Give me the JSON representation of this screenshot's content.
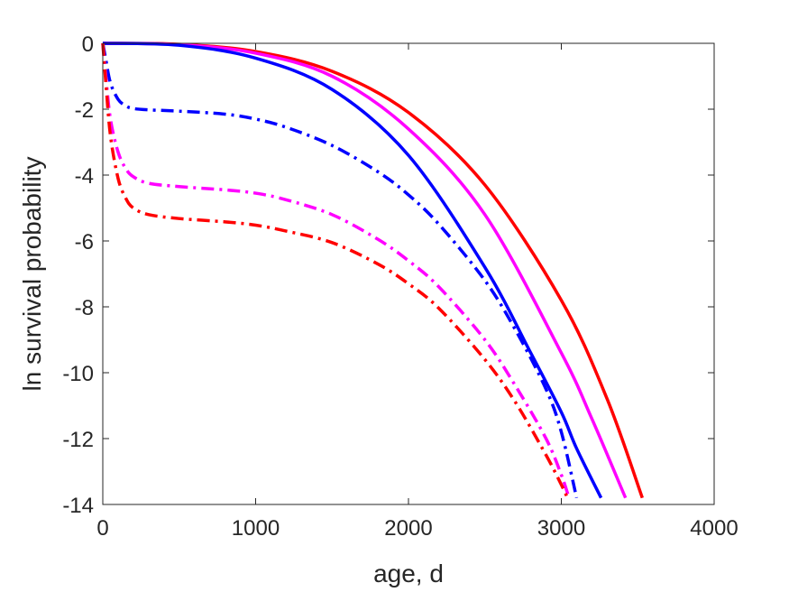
{
  "chart_data": {
    "type": "line",
    "title": "",
    "xlabel": "age, d",
    "ylabel": "ln survival probability",
    "xlim": [
      0,
      4000
    ],
    "ylim": [
      -14,
      0
    ],
    "xticks": [
      0,
      1000,
      2000,
      3000,
      4000
    ],
    "yticks": [
      0,
      -2,
      -4,
      -6,
      -8,
      -10,
      -12,
      -14
    ],
    "xtick_labels": [
      "0",
      "1000",
      "2000",
      "3000",
      "4000"
    ],
    "ytick_labels": [
      "0",
      "-2",
      "-4",
      "-6",
      "-8",
      "-10",
      "-12",
      "-14"
    ],
    "grid": false,
    "series": [
      {
        "color": "#ff0000",
        "style": "solid",
        "x": [
          0,
          500,
          1000,
          1500,
          2000,
          2500,
          3000,
          3300,
          3530
        ],
        "y": [
          0,
          -0.03,
          -0.25,
          -0.85,
          -2.1,
          -4.3,
          -7.8,
          -10.8,
          -13.8
        ]
      },
      {
        "color": "#ff00ff",
        "style": "solid",
        "x": [
          0,
          500,
          1000,
          1500,
          2000,
          2500,
          3000,
          3200,
          3420
        ],
        "y": [
          0,
          -0.04,
          -0.3,
          -1.0,
          -2.6,
          -5.2,
          -9.4,
          -11.4,
          -13.8
        ]
      },
      {
        "color": "#0000ff",
        "style": "solid",
        "x": [
          0,
          500,
          1000,
          1500,
          2000,
          2500,
          2800,
          3000,
          3100,
          3260
        ],
        "y": [
          0,
          -0.06,
          -0.45,
          -1.4,
          -3.4,
          -6.8,
          -9.4,
          -11.2,
          -12.3,
          -13.8
        ]
      },
      {
        "color": "#0000ff",
        "style": "dashdot",
        "x": [
          0,
          20,
          50,
          100,
          150,
          200,
          300,
          500,
          800,
          1000,
          1200,
          1500,
          1800,
          2000,
          2200,
          2500,
          2700,
          2900,
          3000,
          3100
        ],
        "y": [
          0,
          -0.5,
          -1.2,
          -1.7,
          -1.9,
          -1.98,
          -2.02,
          -2.06,
          -2.15,
          -2.3,
          -2.55,
          -3.1,
          -3.9,
          -4.6,
          -5.5,
          -7.2,
          -8.7,
          -10.5,
          -11.8,
          -13.8
        ]
      },
      {
        "color": "#ff00ff",
        "style": "dashdot",
        "x": [
          0,
          20,
          50,
          100,
          150,
          200,
          300,
          500,
          800,
          1000,
          1200,
          1500,
          1800,
          2000,
          2200,
          2500,
          2700,
          2900,
          3000,
          3050
        ],
        "y": [
          0,
          -1.0,
          -2.3,
          -3.3,
          -3.8,
          -4.05,
          -4.25,
          -4.35,
          -4.45,
          -4.55,
          -4.75,
          -5.2,
          -5.95,
          -6.6,
          -7.4,
          -9.0,
          -10.4,
          -12.0,
          -13.1,
          -13.8
        ]
      },
      {
        "color": "#ff0000",
        "style": "dashdot",
        "x": [
          0,
          20,
          50,
          100,
          150,
          200,
          300,
          500,
          800,
          1000,
          1200,
          1500,
          1800,
          2000,
          2200,
          2500,
          2700,
          2900,
          3000,
          3040
        ],
        "y": [
          0,
          -1.2,
          -2.8,
          -4.1,
          -4.7,
          -5.0,
          -5.2,
          -5.32,
          -5.42,
          -5.52,
          -5.7,
          -6.05,
          -6.7,
          -7.3,
          -8.05,
          -9.6,
          -10.9,
          -12.5,
          -13.4,
          -13.8
        ]
      }
    ]
  }
}
